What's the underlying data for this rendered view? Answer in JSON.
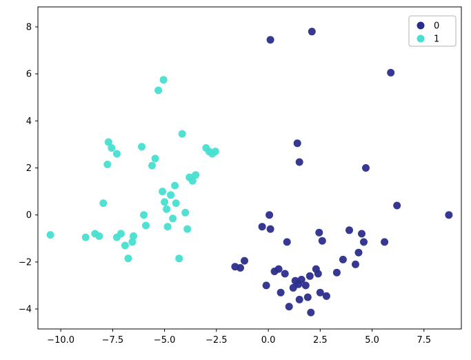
{
  "chart_data": {
    "type": "scatter",
    "title": "",
    "xlabel": "",
    "ylabel": "",
    "grid": false,
    "background": "#ffffff",
    "xlim": [
      -11.1,
      9.3
    ],
    "ylim": [
      -4.85,
      8.85
    ],
    "xtick_values": [
      -10.0,
      -7.5,
      -5.0,
      -2.5,
      0.0,
      2.5,
      5.0,
      7.5
    ],
    "xtick_labels": [
      "−10.0",
      "−7.5",
      "−5.0",
      "−2.5",
      "0.0",
      "2.5",
      "5.0",
      "7.5"
    ],
    "ytick_values": [
      -4,
      -2,
      0,
      2,
      4,
      6,
      8
    ],
    "ytick_labels": [
      "−4",
      "−2",
      "0",
      "2",
      "4",
      "6",
      "8"
    ],
    "marker_radius": 5.5,
    "legend": {
      "position": "upper right",
      "entries": [
        "0",
        "1"
      ]
    },
    "series": [
      {
        "name": "0",
        "color": "#2b2d8c",
        "points": [
          [
            0.1,
            7.45
          ],
          [
            2.1,
            7.8
          ],
          [
            5.9,
            6.05
          ],
          [
            1.4,
            3.05
          ],
          [
            1.5,
            2.25
          ],
          [
            4.7,
            2.0
          ],
          [
            6.2,
            0.4
          ],
          [
            8.7,
            0.0
          ],
          [
            0.05,
            0.0
          ],
          [
            -0.3,
            -0.5
          ],
          [
            0.1,
            -0.6
          ],
          [
            0.9,
            -1.15
          ],
          [
            2.45,
            -0.75
          ],
          [
            2.6,
            -1.1
          ],
          [
            3.9,
            -0.65
          ],
          [
            4.5,
            -0.8
          ],
          [
            4.6,
            -1.15
          ],
          [
            5.6,
            -1.15
          ],
          [
            4.35,
            -1.6
          ],
          [
            3.6,
            -1.9
          ],
          [
            4.2,
            -2.1
          ],
          [
            -1.6,
            -2.2
          ],
          [
            -1.35,
            -2.25
          ],
          [
            -1.15,
            -1.95
          ],
          [
            0.5,
            -2.3
          ],
          [
            0.8,
            -2.5
          ],
          [
            -0.1,
            -3.0
          ],
          [
            0.6,
            -3.3
          ],
          [
            1.3,
            -2.8
          ],
          [
            1.45,
            -2.95
          ],
          [
            1.6,
            -2.75
          ],
          [
            1.2,
            -3.1
          ],
          [
            1.8,
            -3.0
          ],
          [
            2.0,
            -2.6
          ],
          [
            2.3,
            -2.3
          ],
          [
            2.4,
            -2.5
          ],
          [
            1.5,
            -3.6
          ],
          [
            1.9,
            -3.5
          ],
          [
            2.5,
            -3.3
          ],
          [
            1.0,
            -3.9
          ],
          [
            2.05,
            -4.15
          ],
          [
            2.8,
            -3.45
          ],
          [
            3.3,
            -2.45
          ],
          [
            0.3,
            -2.4
          ]
        ]
      },
      {
        "name": "1",
        "color": "#48dfd0",
        "points": [
          [
            -10.5,
            -0.85
          ],
          [
            -8.8,
            -0.95
          ],
          [
            -8.35,
            -0.8
          ],
          [
            -8.15,
            -0.9
          ],
          [
            -7.95,
            0.5
          ],
          [
            -7.7,
            3.1
          ],
          [
            -7.55,
            2.85
          ],
          [
            -7.75,
            2.15
          ],
          [
            -7.3,
            2.6
          ],
          [
            -7.3,
            -0.95
          ],
          [
            -7.1,
            -0.8
          ],
          [
            -6.9,
            -1.3
          ],
          [
            -6.75,
            -1.85
          ],
          [
            -6.55,
            -1.15
          ],
          [
            -6.5,
            -0.9
          ],
          [
            -6.1,
            2.9
          ],
          [
            -6.0,
            0.0
          ],
          [
            -5.9,
            -0.45
          ],
          [
            -5.6,
            2.1
          ],
          [
            -5.45,
            2.4
          ],
          [
            -5.3,
            5.3
          ],
          [
            -5.05,
            5.75
          ],
          [
            -5.1,
            1.0
          ],
          [
            -5.0,
            0.55
          ],
          [
            -4.9,
            0.25
          ],
          [
            -4.85,
            -0.5
          ],
          [
            -4.7,
            0.85
          ],
          [
            -4.6,
            -0.15
          ],
          [
            -4.5,
            1.25
          ],
          [
            -4.45,
            0.5
          ],
          [
            -4.3,
            -1.85
          ],
          [
            -4.15,
            3.45
          ],
          [
            -4.0,
            0.1
          ],
          [
            -3.9,
            -0.6
          ],
          [
            -3.8,
            1.6
          ],
          [
            -3.65,
            1.45
          ],
          [
            -3.5,
            1.7
          ],
          [
            -3.0,
            2.85
          ],
          [
            -2.85,
            2.7
          ],
          [
            -2.7,
            2.6
          ],
          [
            -2.55,
            2.7
          ]
        ]
      }
    ]
  }
}
